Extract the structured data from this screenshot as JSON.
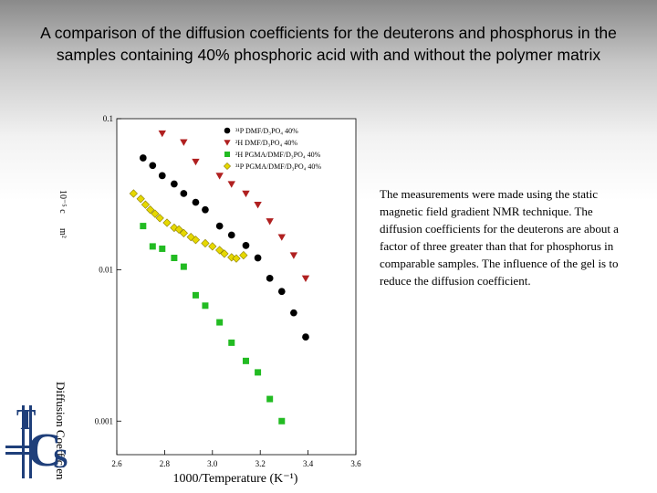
{
  "slide": {
    "title": "A comparison of the diffusion coefficients for the deuterons and phosphorus in the samples containing 40% phosphoric acid with and without the polymer matrix",
    "description": "The measurements were made using the static magnetic field gradient NMR technique.  The diffusion coefficients for the deuterons are about a factor of three greater than that for phosphorus in comparable samples. The influence of the gel is to reduce the diffusion coefficient."
  },
  "logo": {
    "text": "TCS"
  },
  "chart_data": {
    "type": "scatter",
    "xlabel": "1000/Temperature  (K⁻¹)",
    "ylabel": "Diffusion Coefficient (10⁻⁵ cm² s⁻¹)",
    "ylabel_fragments": [
      "Diffusion Coefficien",
      "m²",
      "10⁻⁵ c"
    ],
    "xlim": [
      2.6,
      3.6
    ],
    "ylim": [
      0.0006,
      0.1
    ],
    "yscale": "log",
    "xticks": [
      "2.6",
      "2.8",
      "3.0",
      "3.2",
      "3.4",
      "3.6"
    ],
    "yticks": [
      {
        "label": "0.1",
        "value": 0.1
      },
      {
        "label": "0.01",
        "value": 0.01
      },
      {
        "label": "0.001",
        "value": 0.001
      }
    ],
    "legend_position": "top-right",
    "series": [
      {
        "name": "31P DMF/D3PO4 40%",
        "legend_label": "³¹P DMF/D₃PO₄ 40%",
        "marker": "circle",
        "color": "#000000",
        "x": [
          2.71,
          2.75,
          2.79,
          2.84,
          2.88,
          2.93,
          2.97,
          3.03,
          3.08,
          3.14,
          3.19,
          3.24,
          3.29,
          3.34,
          3.39
        ],
        "y": [
          0.055,
          0.049,
          0.042,
          0.037,
          0.032,
          0.028,
          0.025,
          0.0195,
          0.017,
          0.0145,
          0.012,
          0.0088,
          0.0072,
          0.0052,
          0.0036
        ]
      },
      {
        "name": "2H DMF/D3PO4 40%",
        "legend_label": "²H DMF/D₃PO₄ 40%",
        "marker": "triangle-down",
        "color": "#b02020",
        "x": [
          2.79,
          2.88,
          2.93,
          3.03,
          3.08,
          3.14,
          3.19,
          3.24,
          3.29,
          3.34,
          3.39
        ],
        "y": [
          0.08,
          0.07,
          0.052,
          0.042,
          0.037,
          0.032,
          0.027,
          0.021,
          0.0165,
          0.0125,
          0.0088
        ]
      },
      {
        "name": "2H PGMA/DMF/D3PO4 40%",
        "legend_label": "²H PGMA/DMF/D₃PO₄ 40%",
        "marker": "square",
        "color": "#22bb22",
        "x": [
          2.71,
          2.75,
          2.79,
          2.84,
          2.88,
          2.93,
          2.97,
          3.03,
          3.08,
          3.14,
          3.19,
          3.24,
          3.29
        ],
        "y": [
          0.0195,
          0.0143,
          0.0138,
          0.012,
          0.0105,
          0.0068,
          0.0058,
          0.0045,
          0.0033,
          0.0025,
          0.0021,
          0.0014,
          0.001
        ]
      },
      {
        "name": "31P PGMA/DMF/D3PO4 40%",
        "legend_label": "³¹P PGMA/DMF/D₃PO₄ 40%",
        "marker": "diamond",
        "color": "#e6d800",
        "x": [
          2.67,
          2.7,
          2.72,
          2.74,
          2.76,
          2.78,
          2.81,
          2.84,
          2.86,
          2.88,
          2.91,
          2.93,
          2.97,
          3.0,
          3.03,
          3.05,
          3.08,
          3.1,
          3.13
        ],
        "y": [
          0.032,
          0.0295,
          0.027,
          0.025,
          0.0235,
          0.022,
          0.0205,
          0.019,
          0.0185,
          0.0175,
          0.0165,
          0.0158,
          0.015,
          0.0143,
          0.0135,
          0.0128,
          0.0121,
          0.0119,
          0.0125
        ]
      }
    ]
  }
}
